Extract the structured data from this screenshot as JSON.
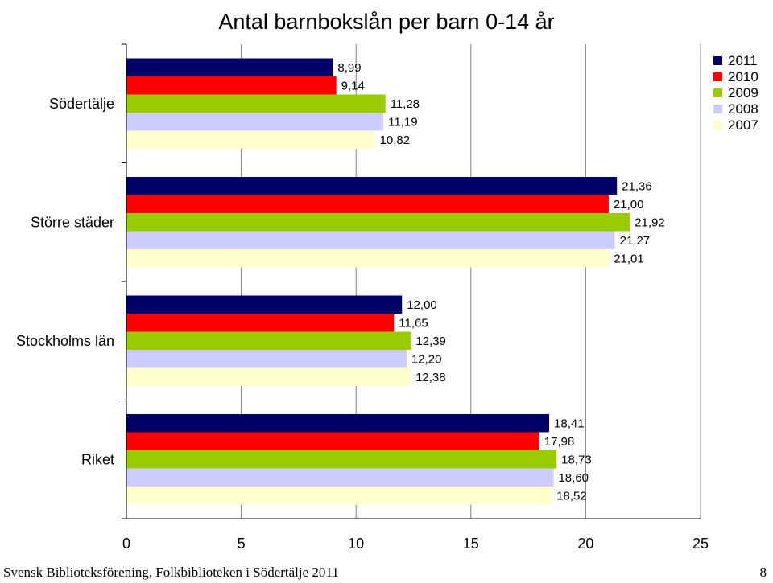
{
  "chart_data": {
    "type": "bar",
    "orientation": "horizontal",
    "title": "Antal barnbokslån per barn 0-14 år",
    "categories": [
      "Södertälje",
      "Större städer",
      "Stockholms län",
      "Riket"
    ],
    "series": [
      {
        "name": "2011",
        "color": "#000066",
        "values": [
          8.99,
          21.36,
          12.0,
          18.41
        ],
        "labels": [
          "8,99",
          "21,36",
          "12,00",
          "18,41"
        ]
      },
      {
        "name": "2010",
        "color": "#ff0000",
        "values": [
          9.14,
          21.0,
          11.65,
          17.98
        ],
        "labels": [
          "9,14",
          "21,00",
          "11,65",
          "17,98"
        ]
      },
      {
        "name": "2009",
        "color": "#99cc00",
        "values": [
          11.28,
          21.92,
          12.39,
          18.73
        ],
        "labels": [
          "11,28",
          "21,92",
          "12,39",
          "18,73"
        ]
      },
      {
        "name": "2008",
        "color": "#ccccff",
        "values": [
          11.19,
          21.27,
          12.2,
          18.6
        ],
        "labels": [
          "11,19",
          "21,27",
          "12,20",
          "18,60"
        ]
      },
      {
        "name": "2007",
        "color": "#ffffcc",
        "values": [
          10.82,
          21.01,
          12.38,
          18.52
        ],
        "labels": [
          "10,82",
          "21,01",
          "12,38",
          "18,52"
        ]
      }
    ],
    "xlim": [
      0,
      25
    ],
    "xticks": [
      "0",
      "5",
      "10",
      "15",
      "20",
      "25"
    ],
    "grid": "vertical",
    "legend_position": "top-right"
  },
  "footer": {
    "left": "Svensk Biblioteksförening, Folkbiblioteken i Södertälje 2011",
    "page": "8"
  }
}
